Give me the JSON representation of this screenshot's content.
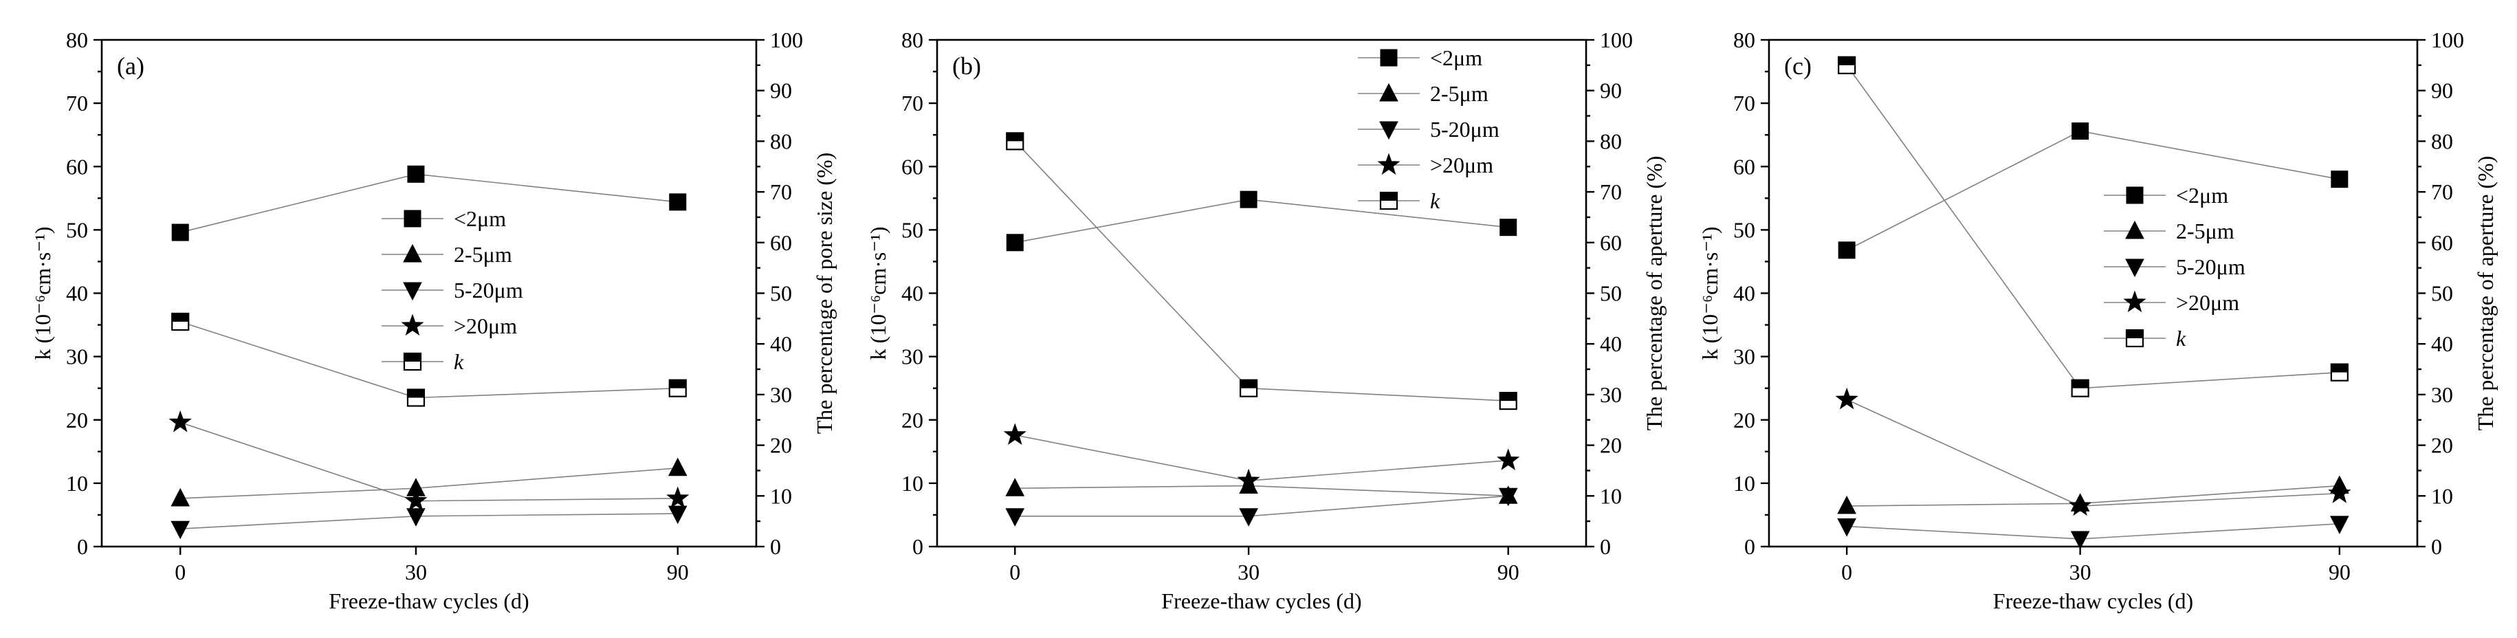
{
  "chart_data": [
    {
      "type": "line",
      "panel_label": "(a)",
      "xlabel": "Freeze-thaw cycles (d)",
      "ylabel": "k (10⁻⁶cm·s⁻¹)",
      "y2label": "The percentage of pore size (%)",
      "categories": [
        "0",
        "30",
        "90"
      ],
      "ylim": [
        0,
        80
      ],
      "y2lim": [
        0,
        100
      ],
      "legend_position": "center-right",
      "series": [
        {
          "name": "<2μm",
          "axis": "right",
          "marker": "square",
          "values": [
            62,
            73.5,
            68
          ]
        },
        {
          "name": "2-5μm",
          "axis": "right",
          "marker": "triangle-up",
          "values": [
            9.5,
            11.5,
            15.5
          ]
        },
        {
          "name": "5-20μm",
          "axis": "right",
          "marker": "triangle-down",
          "values": [
            3.5,
            6,
            6.5
          ]
        },
        {
          "name": ">20μm",
          "axis": "right",
          "marker": "star",
          "values": [
            24.5,
            9,
            9.5
          ]
        },
        {
          "name": "k",
          "axis": "left",
          "marker": "half-square",
          "values": [
            35.5,
            23.5,
            25
          ]
        }
      ]
    },
    {
      "type": "line",
      "panel_label": "(b)",
      "xlabel": "Freeze-thaw cycles (d)",
      "ylabel": "k (10⁻⁶cm·s⁻¹)",
      "y2label": "The percentage of aperture (%)",
      "categories": [
        "0",
        "30",
        "90"
      ],
      "ylim": [
        0,
        80
      ],
      "y2lim": [
        0,
        100
      ],
      "legend_position": "top-right",
      "series": [
        {
          "name": "<2μm",
          "axis": "right",
          "marker": "square",
          "values": [
            60,
            68.5,
            63
          ]
        },
        {
          "name": "2-5μm",
          "axis": "right",
          "marker": "triangle-up",
          "values": [
            11.5,
            12,
            10
          ]
        },
        {
          "name": "5-20μm",
          "axis": "right",
          "marker": "triangle-down",
          "values": [
            6,
            6,
            10
          ]
        },
        {
          "name": ">20μm",
          "axis": "right",
          "marker": "star",
          "values": [
            22,
            13,
            17
          ]
        },
        {
          "name": "k",
          "axis": "left",
          "marker": "half-square",
          "values": [
            64,
            25,
            23
          ]
        }
      ]
    },
    {
      "type": "line",
      "panel_label": "(c)",
      "xlabel": "Freeze-thaw cycles (d)",
      "ylabel": "k (10⁻⁶cm·s⁻¹)",
      "y2label": "The percentage of aperture (%)",
      "categories": [
        "0",
        "30",
        "90"
      ],
      "ylim": [
        0,
        80
      ],
      "y2lim": [
        0,
        100
      ],
      "legend_position": "center-right",
      "series": [
        {
          "name": "<2μm",
          "axis": "right",
          "marker": "square",
          "values": [
            58.5,
            82,
            72.5
          ]
        },
        {
          "name": "2-5μm",
          "axis": "right",
          "marker": "triangle-up",
          "values": [
            8,
            8.5,
            12
          ]
        },
        {
          "name": "5-20μm",
          "axis": "right",
          "marker": "triangle-down",
          "values": [
            4,
            1.5,
            4.5
          ]
        },
        {
          "name": ">20μm",
          "axis": "right",
          "marker": "star",
          "values": [
            29,
            8,
            10.5
          ]
        },
        {
          "name": "k",
          "axis": "left",
          "marker": "half-square",
          "values": [
            76,
            25,
            27.5
          ]
        }
      ]
    }
  ]
}
